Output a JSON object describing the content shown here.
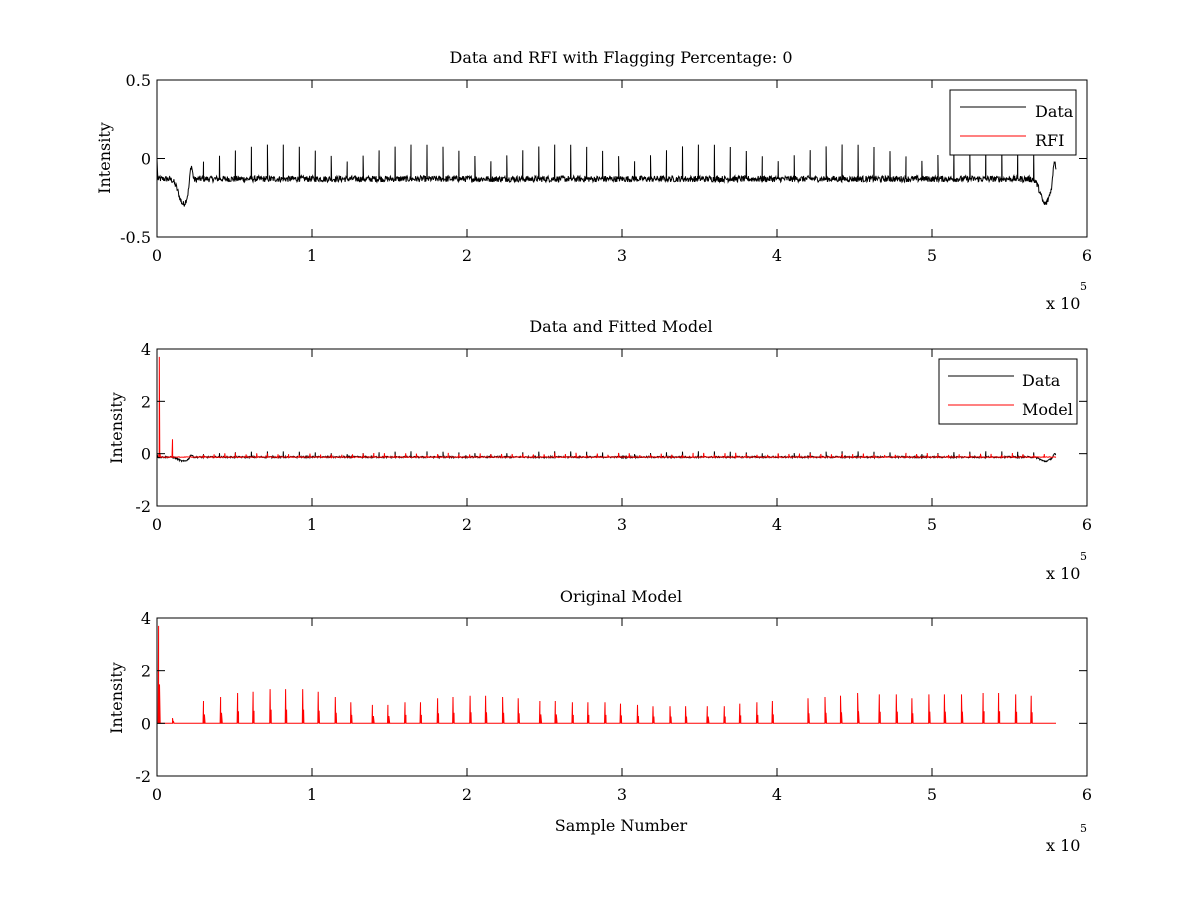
{
  "chart_data": [
    {
      "type": "line",
      "title": "Data and RFI with Flagging Percentage: 0",
      "xlabel": "",
      "ylabel": "Intensity",
      "xlim": [
        0,
        6
      ],
      "ylim": [
        -0.5,
        0.5
      ],
      "x_unit_multiplier": "x 10^5",
      "x_multiplier_base": "x 10",
      "x_multiplier_exp": "5",
      "xticks": [
        "0",
        "1",
        "2",
        "3",
        "4",
        "5",
        "6"
      ],
      "yticks": [
        "-0.5",
        "0",
        "0.5"
      ],
      "yticks_values": [
        -0.5,
        0,
        0.5
      ],
      "legend_position": "top-right",
      "series": [
        {
          "name": "Data",
          "color": "#000000",
          "baseline": -0.13,
          "noise": 0.02,
          "spike_height": 0.22,
          "spike_spacing": 0.103,
          "spike_start": 0.3,
          "spike_end": 5.75,
          "dip_at": [
            0.17,
            5.73
          ],
          "dip_depth": -0.29,
          "start_value": 0.0,
          "end_value": 0.0
        },
        {
          "name": "RFI",
          "color": "#ff0000",
          "values_note_empty": true
        }
      ]
    },
    {
      "type": "line",
      "title": "Data and Fitted Model",
      "xlabel": "",
      "ylabel": "Intensity",
      "xlim": [
        0,
        6
      ],
      "ylim": [
        -2,
        4
      ],
      "x_unit_multiplier": "x 10^5",
      "x_multiplier_base": "x 10",
      "x_multiplier_exp": "5",
      "xticks": [
        "0",
        "1",
        "2",
        "3",
        "4",
        "5",
        "6"
      ],
      "yticks": [
        "-2",
        "0",
        "2",
        "4"
      ],
      "yticks_values": [
        -2,
        0,
        2,
        4
      ],
      "legend_position": "top-right",
      "series": [
        {
          "name": "Data",
          "color": "#000000",
          "baseline": -0.13,
          "noise": 0.03,
          "spike_height": 0.22,
          "spike_spacing": 0.103,
          "spike_start": 0.3,
          "spike_end": 5.75,
          "dip_at": [
            0.17,
            5.73
          ],
          "dip_depth": -0.29
        },
        {
          "name": "Model",
          "color": "#ff0000",
          "baseline": -0.13,
          "first_spike": 3.7,
          "second_spike_x": 0.1,
          "second_spike": 0.55,
          "spike_height": 0.15,
          "spike_spacing": 0.103,
          "spike_start": 0.3,
          "spike_end": 5.75
        }
      ]
    },
    {
      "type": "line",
      "title": "Original Model",
      "xlabel": "Sample Number",
      "ylabel": "Intensity",
      "xlim": [
        0,
        6
      ],
      "ylim": [
        -2,
        4
      ],
      "x_unit_multiplier": "x 10^5",
      "x_multiplier_base": "x 10",
      "x_multiplier_exp": "5",
      "xticks": [
        "0",
        "1",
        "2",
        "3",
        "4",
        "5",
        "6"
      ],
      "yticks": [
        "-2",
        "0",
        "2",
        "4"
      ],
      "yticks_values": [
        -2,
        0,
        2,
        4
      ],
      "series": [
        {
          "name": "Model",
          "color": "#ff0000",
          "baseline": 0.0,
          "x_end": 5.8,
          "spikes": [
            [
              0.01,
              3.7
            ],
            [
              0.1,
              0.2
            ],
            [
              0.3,
              0.85
            ],
            [
              0.41,
              1.0
            ],
            [
              0.52,
              1.15
            ],
            [
              0.62,
              1.2
            ],
            [
              0.73,
              1.3
            ],
            [
              0.83,
              1.3
            ],
            [
              0.94,
              1.3
            ],
            [
              1.04,
              1.2
            ],
            [
              1.15,
              1.0
            ],
            [
              1.25,
              0.8
            ],
            [
              1.39,
              0.7
            ],
            [
              1.49,
              0.7
            ],
            [
              1.6,
              0.8
            ],
            [
              1.7,
              0.8
            ],
            [
              1.81,
              0.95
            ],
            [
              1.91,
              1.0
            ],
            [
              2.02,
              1.05
            ],
            [
              2.12,
              1.05
            ],
            [
              2.23,
              1.0
            ],
            [
              2.33,
              0.95
            ],
            [
              2.47,
              0.85
            ],
            [
              2.57,
              0.85
            ],
            [
              2.68,
              0.8
            ],
            [
              2.78,
              0.8
            ],
            [
              2.89,
              0.8
            ],
            [
              2.99,
              0.75
            ],
            [
              3.1,
              0.7
            ],
            [
              3.2,
              0.65
            ],
            [
              3.31,
              0.65
            ],
            [
              3.41,
              0.65
            ],
            [
              3.55,
              0.65
            ],
            [
              3.66,
              0.65
            ],
            [
              3.76,
              0.75
            ],
            [
              3.87,
              0.8
            ],
            [
              3.97,
              0.85
            ],
            [
              4.2,
              0.95
            ],
            [
              4.31,
              1.0
            ],
            [
              4.41,
              1.05
            ],
            [
              4.52,
              1.15
            ],
            [
              4.66,
              1.1
            ],
            [
              4.77,
              1.1
            ],
            [
              4.87,
              0.95
            ],
            [
              4.98,
              1.1
            ],
            [
              5.08,
              1.1
            ],
            [
              5.19,
              1.1
            ],
            [
              5.33,
              1.15
            ],
            [
              5.43,
              1.15
            ],
            [
              5.54,
              1.1
            ],
            [
              5.64,
              1.05
            ]
          ]
        }
      ]
    }
  ]
}
